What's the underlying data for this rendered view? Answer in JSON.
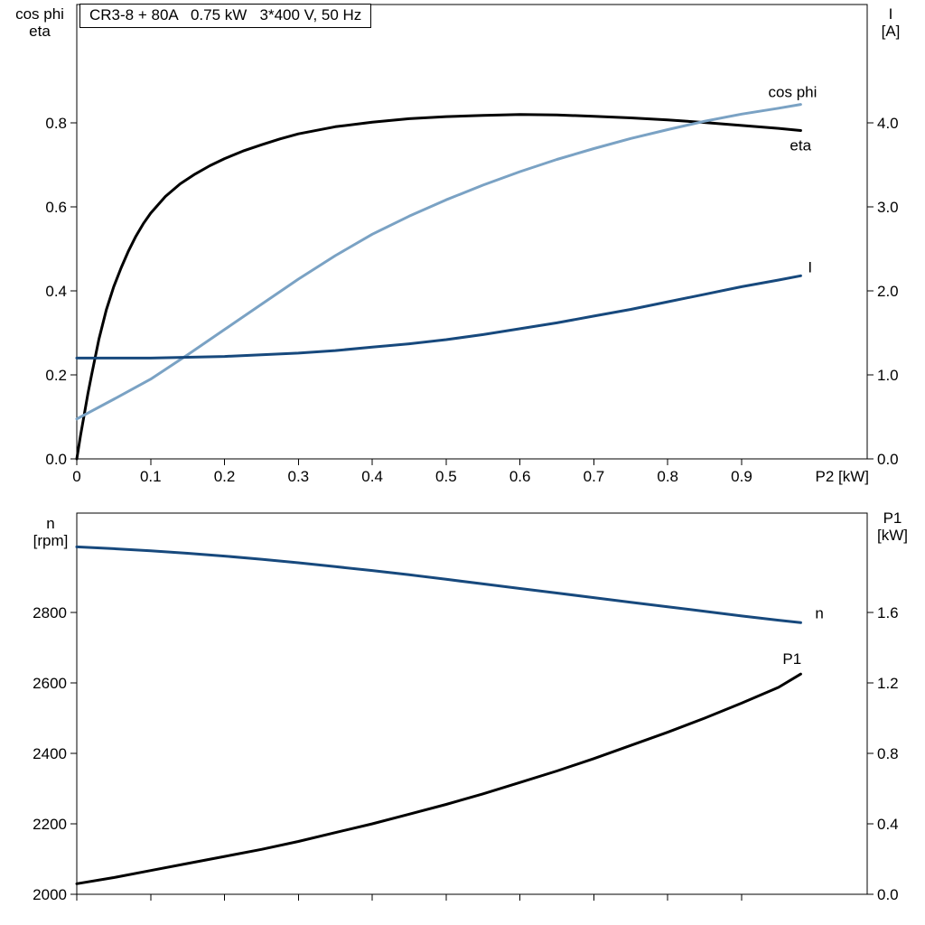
{
  "axis_labels": {
    "top_left": [
      "cos phi",
      "eta"
    ],
    "top_right": [
      "I",
      "[A]"
    ],
    "bottom_left": [
      "n",
      "[rpm]"
    ],
    "bottom_right": [
      "P1",
      "[kW]"
    ]
  },
  "colors": {
    "frame": "#000000",
    "eta": "#000000",
    "cos_phi": "#7aa2c4",
    "current": "#17497d",
    "speed": "#17497d",
    "p1": "#000000"
  },
  "chart_data": [
    {
      "type": "line",
      "title": "CR3-8 + 80A   0.75 kW   3*400 V, 50 Hz",
      "xlabel": "P2 [kW]",
      "ylabel_left": "cos phi / eta",
      "ylabel_right": "I [A]",
      "grid": false,
      "legend_position": "curve-end-labels",
      "xlim": [
        0,
        1.07
      ],
      "x_ticks": [
        0,
        0.1,
        0.2,
        0.3,
        0.4,
        0.5,
        0.6,
        0.7,
        0.8,
        0.9
      ],
      "x_tick_labels": [
        "0",
        "0.1",
        "0.2",
        "0.3",
        "0.4",
        "0.5",
        "0.6",
        "0.7",
        "0.8",
        "0.9"
      ],
      "ylim_left": [
        0,
        1.082
      ],
      "y_ticks_left": [
        0.0,
        0.2,
        0.4,
        0.6,
        0.8
      ],
      "y_tick_labels_left": [
        "0.0",
        "0.2",
        "0.4",
        "0.6",
        "0.8"
      ],
      "ylim_right": [
        0,
        5.41
      ],
      "y_ticks_right": [
        0.0,
        1.0,
        2.0,
        3.0,
        4.0
      ],
      "y_tick_labels_right": [
        "0.0",
        "1.0",
        "2.0",
        "3.0",
        "4.0"
      ],
      "series": [
        {
          "name": "eta",
          "label": "eta",
          "axis": "left",
          "color_key": "eta",
          "points": [
            [
              0,
              0
            ],
            [
              0.005,
              0.055
            ],
            [
              0.01,
              0.105
            ],
            [
              0.015,
              0.155
            ],
            [
              0.02,
              0.2
            ],
            [
              0.03,
              0.285
            ],
            [
              0.04,
              0.355
            ],
            [
              0.05,
              0.41
            ],
            [
              0.06,
              0.455
            ],
            [
              0.07,
              0.495
            ],
            [
              0.08,
              0.53
            ],
            [
              0.09,
              0.56
            ],
            [
              0.1,
              0.585
            ],
            [
              0.12,
              0.625
            ],
            [
              0.14,
              0.655
            ],
            [
              0.16,
              0.678
            ],
            [
              0.18,
              0.698
            ],
            [
              0.2,
              0.715
            ],
            [
              0.225,
              0.733
            ],
            [
              0.25,
              0.748
            ],
            [
              0.275,
              0.762
            ],
            [
              0.3,
              0.774
            ],
            [
              0.35,
              0.791
            ],
            [
              0.4,
              0.802
            ],
            [
              0.45,
              0.81
            ],
            [
              0.5,
              0.815
            ],
            [
              0.55,
              0.818
            ],
            [
              0.6,
              0.82
            ],
            [
              0.65,
              0.819
            ],
            [
              0.7,
              0.816
            ],
            [
              0.75,
              0.812
            ],
            [
              0.8,
              0.807
            ],
            [
              0.85,
              0.801
            ],
            [
              0.9,
              0.794
            ],
            [
              0.95,
              0.787
            ],
            [
              0.98,
              0.782
            ]
          ]
        },
        {
          "name": "cos phi",
          "label": "cos phi",
          "axis": "left",
          "color_key": "cos_phi",
          "points": [
            [
              0,
              0.095
            ],
            [
              0.05,
              0.142
            ],
            [
              0.1,
              0.19
            ],
            [
              0.15,
              0.248
            ],
            [
              0.2,
              0.308
            ],
            [
              0.25,
              0.368
            ],
            [
              0.3,
              0.428
            ],
            [
              0.35,
              0.484
            ],
            [
              0.4,
              0.535
            ],
            [
              0.45,
              0.578
            ],
            [
              0.5,
              0.617
            ],
            [
              0.55,
              0.652
            ],
            [
              0.6,
              0.684
            ],
            [
              0.65,
              0.713
            ],
            [
              0.7,
              0.739
            ],
            [
              0.75,
              0.763
            ],
            [
              0.8,
              0.784
            ],
            [
              0.85,
              0.804
            ],
            [
              0.9,
              0.821
            ],
            [
              0.95,
              0.835
            ],
            [
              0.98,
              0.844
            ]
          ]
        },
        {
          "name": "I",
          "label": "I",
          "axis": "right",
          "color_key": "current",
          "points": [
            [
              0,
              1.2
            ],
            [
              0.05,
              1.2
            ],
            [
              0.1,
              1.2
            ],
            [
              0.15,
              1.21
            ],
            [
              0.2,
              1.22
            ],
            [
              0.25,
              1.24
            ],
            [
              0.3,
              1.26
            ],
            [
              0.35,
              1.29
            ],
            [
              0.4,
              1.33
            ],
            [
              0.45,
              1.37
            ],
            [
              0.5,
              1.42
            ],
            [
              0.55,
              1.48
            ],
            [
              0.6,
              1.55
            ],
            [
              0.65,
              1.62
            ],
            [
              0.7,
              1.7
            ],
            [
              0.75,
              1.78
            ],
            [
              0.8,
              1.87
            ],
            [
              0.85,
              1.96
            ],
            [
              0.9,
              2.05
            ],
            [
              0.95,
              2.13
            ],
            [
              0.98,
              2.18
            ]
          ]
        }
      ]
    },
    {
      "type": "line",
      "title": "",
      "xlabel": "",
      "ylabel_left": "n [rpm]",
      "ylabel_right": "P1 [kW]",
      "grid": false,
      "legend_position": "curve-end-labels",
      "xlim": [
        0,
        1.07
      ],
      "x_ticks": [
        0,
        0.1,
        0.2,
        0.3,
        0.4,
        0.5,
        0.6,
        0.7,
        0.8,
        0.9
      ],
      "x_tick_labels": [],
      "ylim_left": [
        2000,
        3082
      ],
      "y_ticks_left": [
        2000,
        2200,
        2400,
        2600,
        2800
      ],
      "y_tick_labels_left": [
        "2000",
        "2200",
        "2400",
        "2600",
        "2800"
      ],
      "ylim_right": [
        0,
        2.164
      ],
      "y_ticks_right": [
        0.0,
        0.4,
        0.8,
        1.2,
        1.6
      ],
      "y_tick_labels_right": [
        "0.0",
        "0.4",
        "0.8",
        "1.2",
        "1.6"
      ],
      "series": [
        {
          "name": "n",
          "label": "n",
          "axis": "left",
          "color_key": "speed",
          "points": [
            [
              0,
              2986
            ],
            [
              0.05,
              2981
            ],
            [
              0.1,
              2975
            ],
            [
              0.15,
              2968
            ],
            [
              0.2,
              2960
            ],
            [
              0.25,
              2951
            ],
            [
              0.3,
              2941
            ],
            [
              0.35,
              2930
            ],
            [
              0.4,
              2919
            ],
            [
              0.45,
              2907
            ],
            [
              0.5,
              2894
            ],
            [
              0.55,
              2881
            ],
            [
              0.6,
              2868
            ],
            [
              0.65,
              2855
            ],
            [
              0.7,
              2842
            ],
            [
              0.75,
              2829
            ],
            [
              0.8,
              2816
            ],
            [
              0.85,
              2803
            ],
            [
              0.9,
              2790
            ],
            [
              0.95,
              2778
            ],
            [
              0.98,
              2771
            ]
          ]
        },
        {
          "name": "P1",
          "label": "P1",
          "axis": "right",
          "color_key": "p1",
          "points": [
            [
              0,
              0.06
            ],
            [
              0.05,
              0.095
            ],
            [
              0.1,
              0.135
            ],
            [
              0.15,
              0.175
            ],
            [
              0.2,
              0.215
            ],
            [
              0.25,
              0.255
            ],
            [
              0.3,
              0.3
            ],
            [
              0.35,
              0.35
            ],
            [
              0.4,
              0.4
            ],
            [
              0.45,
              0.455
            ],
            [
              0.5,
              0.51
            ],
            [
              0.55,
              0.57
            ],
            [
              0.6,
              0.635
            ],
            [
              0.65,
              0.7
            ],
            [
              0.7,
              0.77
            ],
            [
              0.75,
              0.845
            ],
            [
              0.8,
              0.92
            ],
            [
              0.85,
              1.0
            ],
            [
              0.9,
              1.085
            ],
            [
              0.95,
              1.175
            ],
            [
              0.98,
              1.25
            ]
          ]
        }
      ]
    }
  ]
}
